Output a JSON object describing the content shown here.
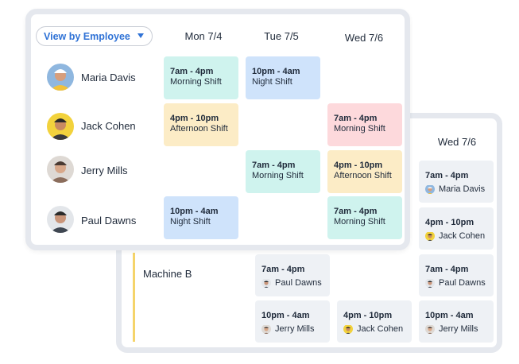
{
  "front": {
    "view_selector": {
      "label": "View by Employee"
    },
    "days": [
      "Mon 7/4",
      "Tue 7/5",
      "Wed 7/6"
    ],
    "employees": [
      {
        "name": "Maria Davis",
        "avatar_colors": {
          "bg": "#8fb7df",
          "hat": "#ffffff",
          "skin": "#d79e7c",
          "shirt": "#f2c23a"
        },
        "shifts": [
          {
            "day": "Mon 7/4",
            "time": "7am - 4pm",
            "name": "Morning Shift",
            "color": "#cff3ee"
          },
          {
            "day": "Tue 7/5",
            "time": "10pm - 4am",
            "name": "Night Shift",
            "color": "#cfe3fb"
          }
        ]
      },
      {
        "name": "Jack Cohen",
        "avatar_colors": {
          "bg": "#f2d23c",
          "hat": "#2a2a2a",
          "skin": "#c88a62",
          "shirt": "#3b3b3b"
        },
        "shifts": [
          {
            "day": "Mon 7/4",
            "time": "4pm - 10pm",
            "name": "Afternoon Shift",
            "color": "#fcecc6"
          },
          {
            "day": "Wed 7/6",
            "time": "7am - 4pm",
            "name": "Morning Shift",
            "color": "#fdd9dc"
          }
        ]
      },
      {
        "name": "Jerry Mills",
        "avatar_colors": {
          "bg": "#ded9d4",
          "hat": "#4a3a32",
          "skin": "#d8a88a",
          "shirt": "#8b6d5c"
        },
        "shifts": [
          {
            "day": "Tue 7/5",
            "time": "7am - 4pm",
            "name": "Morning Shift",
            "color": "#cff3ee"
          },
          {
            "day": "Wed 7/6",
            "time": "4pm - 10pm",
            "name": "Afternoon Shift",
            "color": "#fcecc6"
          }
        ]
      },
      {
        "name": "Paul Dawns",
        "avatar_colors": {
          "bg": "#e3e6ea",
          "hat": "#2a2a2a",
          "skin": "#c9957a",
          "shirt": "#3f4752"
        },
        "shifts": [
          {
            "day": "Mon 7/4",
            "time": "10pm - 4am",
            "name": "Night Shift",
            "color": "#cfe3fb"
          },
          {
            "day": "Wed 7/6",
            "time": "7am - 4pm",
            "name": "Morning Shift",
            "color": "#cff3ee"
          }
        ]
      }
    ]
  },
  "back": {
    "day": "Wed 7/6",
    "machine": {
      "label": "Machine B",
      "accent": "#f5d46a"
    },
    "cards": [
      {
        "time": "7am - 4pm",
        "person": "Maria Davis"
      },
      {
        "time": "4pm - 10pm",
        "person": "Jack Cohen"
      },
      {
        "time": "7am - 4pm",
        "person": "Paul Dawns"
      },
      {
        "time": "7am - 4pm",
        "person": "Paul Dawns"
      },
      {
        "time": "10pm - 4am",
        "person": "Jerry Mills"
      },
      {
        "time": "4pm - 10pm",
        "person": "Jack Cohen"
      },
      {
        "time": "10pm - 4am",
        "person": "Jerry Mills"
      }
    ]
  }
}
